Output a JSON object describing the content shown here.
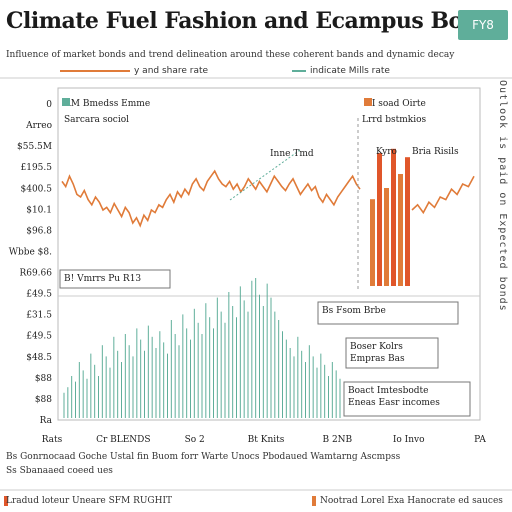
{
  "header": {
    "title": "Climate Fuel Fashion and Ecampus Bonds",
    "subtitle": "Influence of market bonds and trend delineation around these coherent bands and dynamic decay",
    "badge": "FY8"
  },
  "legend": [
    {
      "label": "y and share rate",
      "color": "#e07b39"
    },
    {
      "label": "indicate Mills rate",
      "color": "#5fae9a"
    }
  ],
  "side_label": "Outlook is paid on Expected bonds",
  "colors": {
    "orange": "#e07b39",
    "red": "#e0562a",
    "teal": "#5fae9a",
    "grey": "#999999"
  },
  "chart_data": {
    "type": "line",
    "title": "Climate Fuel Fashion and Ecampus Bonds",
    "y_ticks": [
      "0",
      "Arreo",
      "$55.5M",
      "£195.5",
      "$400.5",
      "$10.1",
      "$96.8",
      "Wbbe $8.",
      "R69.66",
      "£49.5",
      "£31.5",
      "£49.5",
      "$48.5",
      "$88",
      "$88",
      "Ra"
    ],
    "x_ticks": [
      "Rats",
      "Cr BLENDS",
      "So 2",
      "Bt Knits",
      "B 2NB",
      "Io Invo",
      "PA"
    ],
    "series": [
      {
        "name": "y and share rate",
        "values": [
          62,
          58,
          66,
          60,
          52,
          50,
          55,
          48,
          44,
          50,
          46,
          40,
          42,
          38,
          45,
          40,
          35,
          42,
          38,
          30,
          34,
          28,
          36,
          32,
          40,
          38,
          44,
          42,
          48,
          52,
          46,
          54,
          50,
          56,
          52,
          60,
          64,
          58,
          55,
          62,
          66,
          70,
          64,
          60,
          58,
          62,
          56,
          60,
          54,
          58,
          64,
          60,
          56,
          62,
          58,
          54,
          60,
          66,
          62,
          58,
          55,
          60,
          64,
          58,
          52,
          56,
          60,
          55,
          58,
          50,
          46,
          52,
          48,
          44,
          50,
          54,
          58,
          62,
          66,
          60,
          56
        ]
      },
      {
        "name": "indicate Mills rate",
        "values": [
          18,
          22,
          30,
          26,
          40,
          34,
          28,
          46,
          38,
          30,
          52,
          44,
          36,
          58,
          48,
          40,
          60,
          52,
          44,
          64,
          56,
          48,
          66,
          58,
          50,
          62,
          54,
          46,
          70,
          60,
          52,
          74,
          64,
          56,
          78,
          68,
          60,
          82,
          72,
          64,
          86,
          76,
          68,
          90,
          80,
          72,
          94,
          84,
          76,
          98,
          100,
          88,
          80,
          96,
          86,
          76,
          70,
          62,
          56,
          50,
          44,
          58,
          48,
          40,
          52,
          44,
          36,
          46,
          38,
          30,
          40,
          34,
          28
        ]
      },
      {
        "name": "Kyro",
        "values": [
          62,
          95,
          70,
          98,
          80,
          92
        ]
      }
    ],
    "annotations": [
      {
        "text": "RM Bmedss Emme",
        "sub": "Sarcara sociol"
      },
      {
        "text": "Inne Tmd"
      },
      {
        "text": "B! Vmrrs Pu R13"
      },
      {
        "text": "HI soad Oirte",
        "sub": "Lrrd bstmkios"
      },
      {
        "text": "Kyro",
        "sub": "Bria Risils"
      },
      {
        "text": "Bs Fsom Brbe"
      },
      {
        "text": "Boser Kolrs",
        "sub": "Empras Bas"
      },
      {
        "text": "Boact Imtesbodte",
        "sub": "Eneas Easr incomes"
      }
    ]
  },
  "footer": {
    "note_line1": "Bs  Gonrnocaad Goche Ustal fin Buom forr Warte Unocs  Pbodaued  Wamtarng Ascmpss",
    "note_line2": "Ss  Sbanaaed coeed ues",
    "left_caption": "Lradud loteur Uneare  SFM  RUGHIT",
    "right_caption": "Nootrad Lorel Exa  Hanocrate ed sauces"
  }
}
